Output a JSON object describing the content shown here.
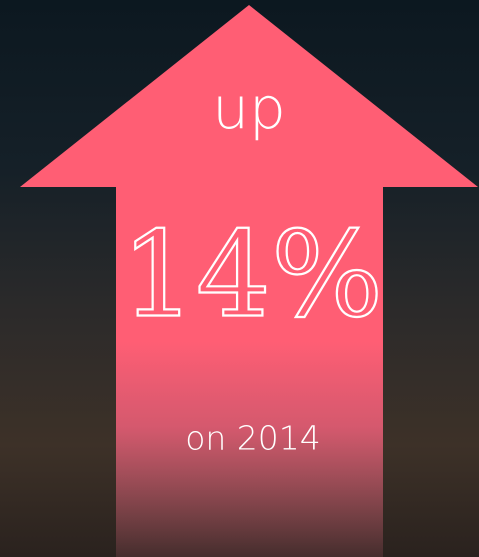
{
  "arrow": {
    "label": "up",
    "headline": "14%",
    "caption": "on 2014"
  }
}
